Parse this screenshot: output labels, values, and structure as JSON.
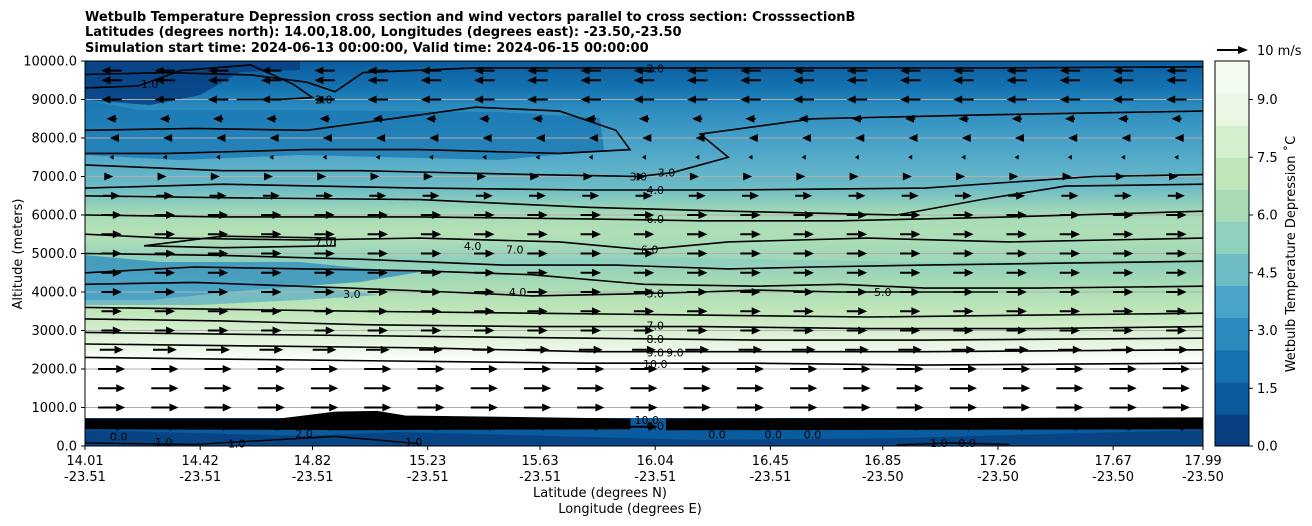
{
  "chart_data": {
    "type": "contour",
    "title_lines": [
      "Wetbulb Temperature Depression cross section and wind vectors parallel to cross section: CrosssectionB",
      "Latitudes (degrees north): 14.00,18.00, Longitudes (degrees east): -23.50,-23.50",
      "Simulation start time: 2024-06-13 00:00:00, Valid time: 2024-06-15 00:00:00"
    ],
    "ylabel": "Altitude (meters)",
    "xlabel_lat": "Latitude (degrees N)",
    "xlabel_lon": "Longitude (degrees E)",
    "ylim": [
      0,
      10000
    ],
    "yticks": [
      "0.0",
      "1000.0",
      "2000.0",
      "3000.0",
      "4000.0",
      "5000.0",
      "6000.0",
      "7000.0",
      "8000.0",
      "9000.0",
      "10000.0"
    ],
    "ytick_values": [
      0,
      1000,
      2000,
      3000,
      4000,
      5000,
      6000,
      7000,
      8000,
      9000,
      10000
    ],
    "xticks_lat": [
      "14.01",
      "14.42",
      "14.82",
      "15.23",
      "15.63",
      "16.04",
      "16.45",
      "16.85",
      "17.26",
      "17.67",
      "17.99"
    ],
    "xticks_lon": [
      "-23.51",
      "-23.51",
      "-23.51",
      "-23.51",
      "-23.51",
      "-23.51",
      "-23.51",
      "-23.50",
      "-23.50",
      "-23.50",
      "-23.50"
    ],
    "xtick_values": [
      14.01,
      14.42,
      14.82,
      15.23,
      15.63,
      16.04,
      16.45,
      16.85,
      17.26,
      17.67,
      17.99
    ],
    "xlim": [
      14.01,
      17.99
    ],
    "colorbar": {
      "label": "Wetbulb Temperature Depression ˚C",
      "ticks": [
        "0.0",
        "1.5",
        "3.0",
        "4.5",
        "6.0",
        "7.5",
        "9.0"
      ],
      "tick_values": [
        0,
        1.5,
        3,
        4.5,
        6,
        7.5,
        9
      ],
      "range": [
        0,
        10
      ],
      "colors": [
        "#084081",
        "#0a5c9e",
        "#1573b1",
        "#2c8bbe",
        "#4aa3c9",
        "#6dbcc6",
        "#8ecfbd",
        "#a8dcb5",
        "#c0e6b9",
        "#d6efcf",
        "#e8f6e2",
        "#f4fbef"
      ]
    },
    "quiver_key": "10 m/s",
    "wind_rows": [
      {
        "alt": 9750,
        "u": -6
      },
      {
        "alt": 9500,
        "u": -6
      },
      {
        "alt": 9000,
        "u": -6
      },
      {
        "alt": 8500,
        "u": -3
      },
      {
        "alt": 8000,
        "u": -1
      },
      {
        "alt": 7500,
        "u": -0.5
      },
      {
        "alt": 7000,
        "u": 1
      },
      {
        "alt": 6500,
        "u": 5
      },
      {
        "alt": 6000,
        "u": 6
      },
      {
        "alt": 5500,
        "u": 6
      },
      {
        "alt": 5000,
        "u": 6
      },
      {
        "alt": 4500,
        "u": 6
      },
      {
        "alt": 4000,
        "u": 6
      },
      {
        "alt": 3500,
        "u": 6
      },
      {
        "alt": 3000,
        "u": 6
      },
      {
        "alt": 2500,
        "u": 7
      },
      {
        "alt": 2000,
        "u": 8
      },
      {
        "alt": 1500,
        "u": 8
      },
      {
        "alt": 1000,
        "u": 8
      },
      {
        "alt": 500,
        "u": 8
      }
    ],
    "contour_labels": [
      {
        "text": "2.0",
        "x": 16.04,
        "y": 9800
      },
      {
        "text": "2.0",
        "x": 14.86,
        "y": 9000
      },
      {
        "text": "1.0",
        "x": 14.24,
        "y": 9400
      },
      {
        "text": "3.0",
        "x": 15.98,
        "y": 7000
      },
      {
        "text": "3.0",
        "x": 16.08,
        "y": 7100
      },
      {
        "text": "4.0",
        "x": 16.04,
        "y": 6650
      },
      {
        "text": "6.0",
        "x": 16.04,
        "y": 5900
      },
      {
        "text": "6.0",
        "x": 16.02,
        "y": 5100
      },
      {
        "text": "7.0",
        "x": 14.86,
        "y": 5300
      },
      {
        "text": "4.0",
        "x": 15.39,
        "y": 5200
      },
      {
        "text": "7.0",
        "x": 15.54,
        "y": 5100
      },
      {
        "text": "3.0",
        "x": 14.96,
        "y": 3950
      },
      {
        "text": "4.0",
        "x": 15.55,
        "y": 4000
      },
      {
        "text": "5.0",
        "x": 16.04,
        "y": 3960
      },
      {
        "text": "5.0",
        "x": 16.85,
        "y": 4000
      },
      {
        "text": "7.0",
        "x": 16.04,
        "y": 3130
      },
      {
        "text": "8.0",
        "x": 16.04,
        "y": 2780
      },
      {
        "text": "9.0",
        "x": 16.04,
        "y": 2430
      },
      {
        "text": "9.0",
        "x": 16.11,
        "y": 2430
      },
      {
        "text": "10.0",
        "x": 16.04,
        "y": 2130
      },
      {
        "text": "10.0",
        "x": 16.01,
        "y": 680
      },
      {
        "text": "0.0",
        "x": 16.04,
        "y": 520
      },
      {
        "text": "0.0",
        "x": 16.26,
        "y": 300
      },
      {
        "text": "0.0",
        "x": 16.46,
        "y": 300
      },
      {
        "text": "0.0",
        "x": 16.6,
        "y": 300
      },
      {
        "text": "1.0",
        "x": 14.29,
        "y": 100
      },
      {
        "text": "1.0",
        "x": 14.55,
        "y": 60
      },
      {
        "text": "2.0",
        "x": 14.79,
        "y": 330
      },
      {
        "text": "1.0",
        "x": 15.18,
        "y": 100
      },
      {
        "text": "1.0",
        "x": 17.05,
        "y": 80
      },
      {
        "text": "0.0",
        "x": 17.15,
        "y": 80
      },
      {
        "text": "0.0",
        "x": 14.13,
        "y": 250
      }
    ]
  }
}
